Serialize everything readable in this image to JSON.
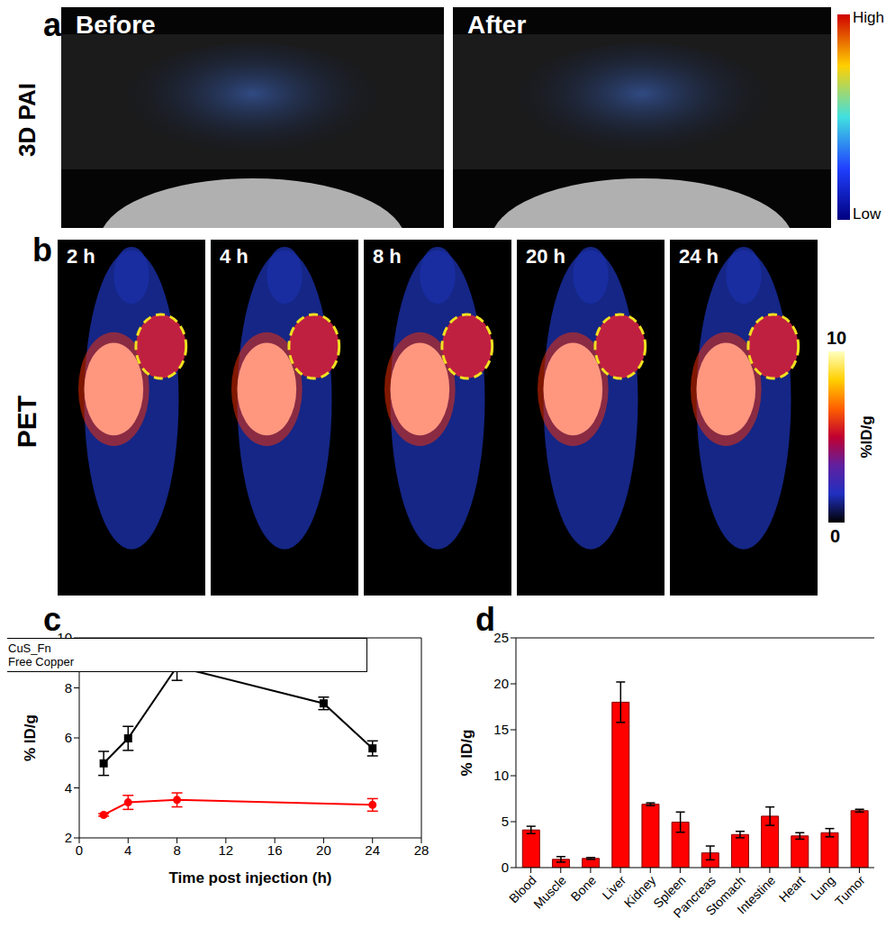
{
  "figure": {
    "a": {
      "panel_label": "a",
      "side_label": "3D PAI",
      "images": [
        "Before",
        "After"
      ],
      "colorbar": {
        "high": "High",
        "low": "Low"
      }
    },
    "b": {
      "panel_label": "b",
      "side_label": "PET",
      "images": [
        "2 h",
        "4 h",
        "8 h",
        "20 h",
        "24 h"
      ],
      "colorbar": {
        "range": [
          0,
          10
        ],
        "ticks": [
          0,
          10
        ],
        "label": "%ID/g"
      }
    }
  },
  "chart_data": [
    {
      "panel_label": "c",
      "type": "line",
      "x_label": "Time post injection (h)",
      "y_label": "% ID/g",
      "xlim": [
        0,
        28
      ],
      "xticks": [
        0,
        4,
        8,
        12,
        16,
        20,
        24,
        28
      ],
      "ylim": [
        2,
        10
      ],
      "yticks": [
        2,
        4,
        6,
        8,
        10
      ],
      "legend": "upper right",
      "series": [
        {
          "name": "CuS_Fn",
          "color": "#000000",
          "marker": "square",
          "x": [
            2,
            4,
            8,
            20,
            24
          ],
          "values": [
            4.98,
            5.98,
            8.85,
            7.38,
            5.58
          ],
          "errors": [
            0.48,
            0.48,
            0.55,
            0.25,
            0.3
          ]
        },
        {
          "name": "Free Copper",
          "color": "#ff0000",
          "marker": "circle",
          "x": [
            2,
            4,
            8,
            24
          ],
          "values": [
            2.92,
            3.42,
            3.52,
            3.32
          ],
          "errors": [
            0.05,
            0.28,
            0.28,
            0.25
          ]
        }
      ]
    },
    {
      "panel_label": "d",
      "type": "bar",
      "y_label": "% ID/g",
      "categories": [
        "Blood",
        "Muscle",
        "Bone",
        "Liver",
        "Kidney",
        "Spleen",
        "Pancreas",
        "Stomach",
        "Intestine",
        "Heart",
        "Lung",
        "Tumor"
      ],
      "values": [
        4.1,
        0.9,
        1.0,
        18.0,
        6.9,
        4.95,
        1.6,
        3.6,
        5.6,
        3.45,
        3.8,
        6.2
      ],
      "errors": [
        0.4,
        0.3,
        0.1,
        2.2,
        0.15,
        1.1,
        0.75,
        0.35,
        1.0,
        0.35,
        0.45,
        0.15
      ],
      "color": "#ff0000",
      "ylim": [
        0,
        25
      ],
      "yticks": [
        0,
        5,
        10,
        15,
        20,
        25
      ]
    }
  ]
}
